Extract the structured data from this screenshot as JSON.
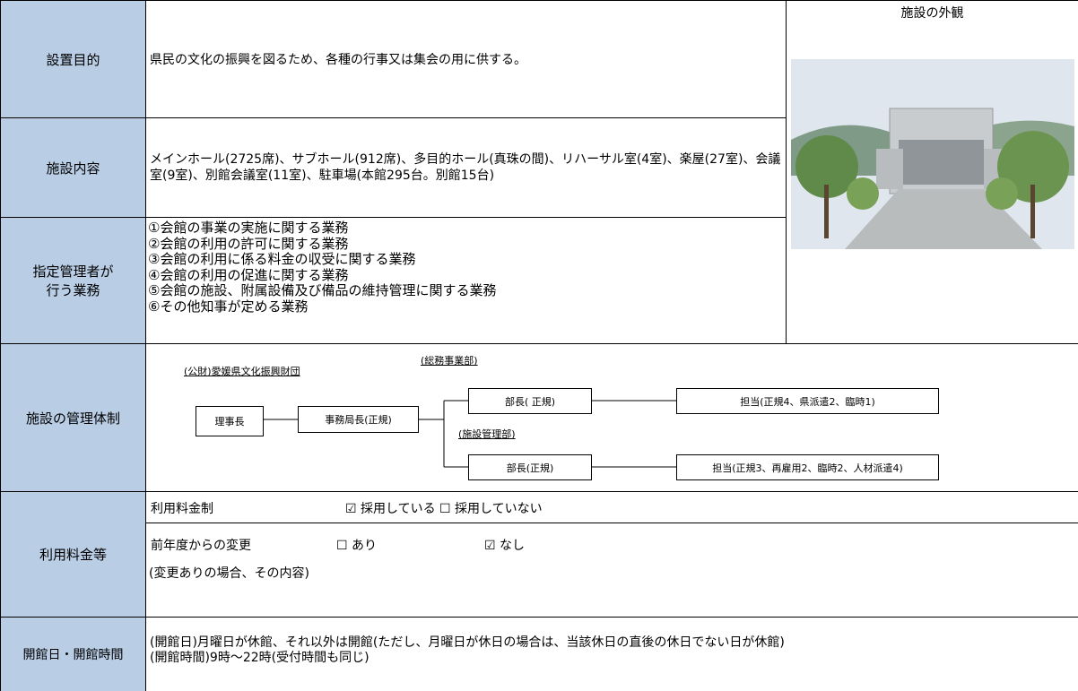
{
  "purpose": {
    "label": "設置目的",
    "text": "県民の文化の振興を図るため、各種の行事又は集会の用に供する。"
  },
  "facilities": {
    "label": "施設内容",
    "text": "メインホール(2725席)、サブホール(912席)、多目的ホール(真珠の間)、リハーサル室(4室)、楽屋(27室)、会議室(9室)、別館会議室(11室)、駐車場(本館295台。別館15台)"
  },
  "duties": {
    "label": "指定管理者が\n行う業務",
    "items": [
      "①会館の事業の実施に関する業務",
      "②会館の利用の許可に関する業務",
      "③会館の利用に係る料金の収受に関する業務",
      "④会館の利用の促進に関する業務",
      "⑤会館の施設、附属設備及び備品の維持管理に関する業務",
      "⑥その他知事が定める業務"
    ]
  },
  "photo": {
    "caption": "施設の外観"
  },
  "management": {
    "label": "施設の管理体制",
    "org": {
      "foundation": "(公財)愛媛県文化振興財団",
      "chairman": "理事長",
      "secretary_general": "事務局長(正規)",
      "dept1": {
        "name": "(総務事業部)",
        "head": "部長( 正規)",
        "staff": "担当(正規4、県派遣2、臨時1)"
      },
      "dept2": {
        "name": "(施設管理部)",
        "head": "部長(正規)",
        "staff": "担当(正規3、再雇用2、臨時2、人材派遣4)"
      }
    }
  },
  "fees": {
    "label": "利用料金等",
    "system_label": "利用料金制",
    "system_options": "☑ 採用している ☐ 採用していない",
    "change_label": "前年度からの変更",
    "change_yes": "☐ あり",
    "change_no": "☑ なし",
    "details_label": "(変更ありの場合、その内容)"
  },
  "hours": {
    "label": "開館日・開館時間",
    "lines": [
      "(開館日)月曜日が休館、それ以外は開館(ただし、月曜日が休日の場合は、当該休日の直後の休日でない日が休館)",
      "(開館時間)9時～22時(受付時間も同じ)"
    ]
  }
}
